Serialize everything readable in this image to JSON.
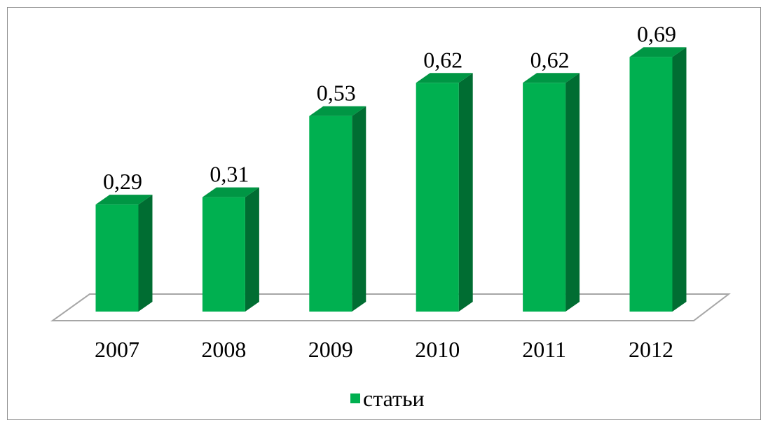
{
  "chart_data": {
    "type": "bar",
    "categories": [
      "2007",
      "2008",
      "2009",
      "2010",
      "2011",
      "2012"
    ],
    "series": [
      {
        "name": "статьи",
        "color": "#00b050",
        "values": [
          0.29,
          0.31,
          0.53,
          0.62,
          0.62,
          0.69
        ],
        "value_labels": [
          "0,29",
          "0,31",
          "0,53",
          "0,62",
          "0,62",
          "0,69"
        ]
      }
    ]
  }
}
